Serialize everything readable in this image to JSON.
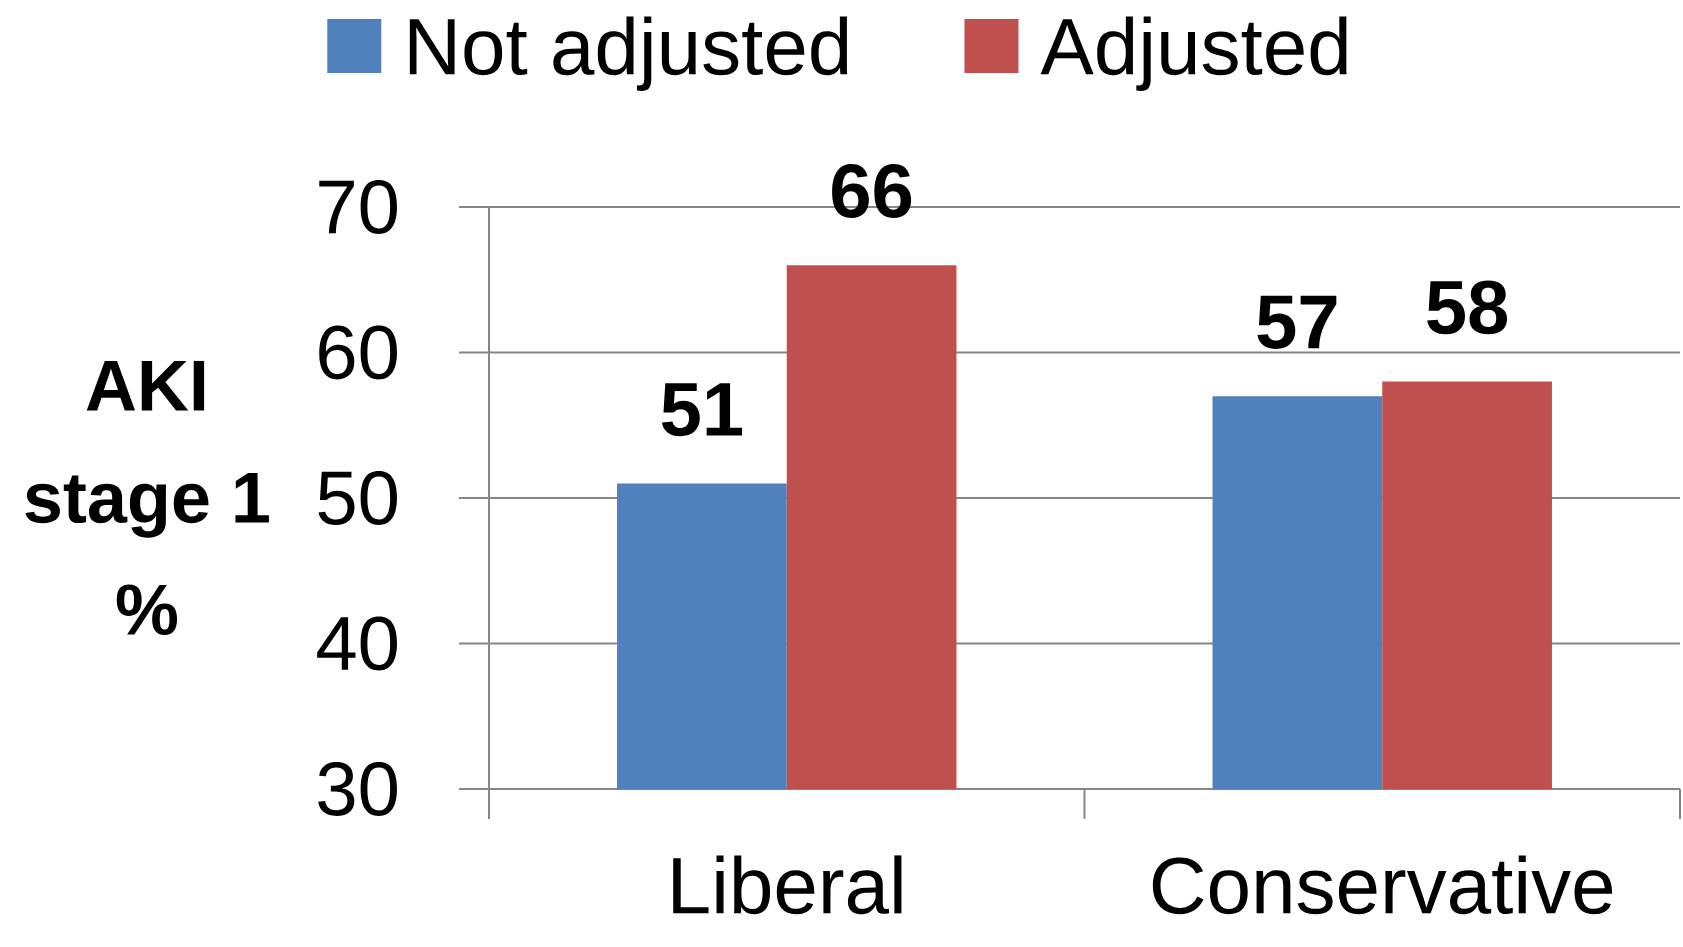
{
  "chart_data": {
    "type": "bar",
    "ylabel": "AKI stage 1 %",
    "categories": [
      "Liberal",
      "Conservative"
    ],
    "series": [
      {
        "name": "Not adjusted",
        "color": "#4f81bd",
        "values": [
          51,
          57
        ]
      },
      {
        "name": "Adjusted",
        "color": "#c0504d",
        "values": [
          66,
          58
        ]
      }
    ],
    "ylim": [
      30,
      70
    ],
    "yticks": [
      30,
      40,
      50,
      60,
      70
    ],
    "grid": "y",
    "legend": "top",
    "data_labels": true
  }
}
